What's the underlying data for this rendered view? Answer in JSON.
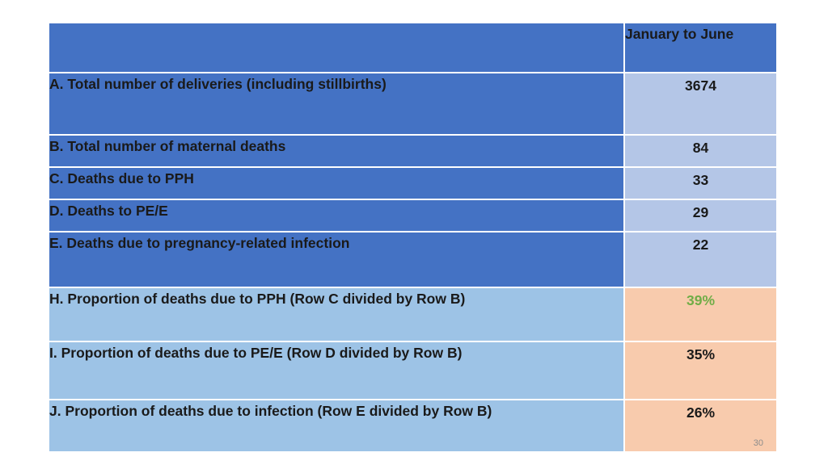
{
  "table": {
    "header": {
      "label": "",
      "value": "January to June"
    },
    "rows": [
      {
        "label": "A. Total number of deliveries (including stillbirths)",
        "value": "3674"
      },
      {
        "label": "B. Total number of maternal deaths",
        "value": "84"
      },
      {
        "label": "C. Deaths due to PPH",
        "value": "33"
      },
      {
        "label": "D. Deaths to PE/E",
        "value": "29"
      },
      {
        "label": "E. Deaths due to pregnancy-related infection",
        "value": "22"
      },
      {
        "label": "H. Proportion of deaths due to PPH (Row C divided by Row B)",
        "value": "39%"
      },
      {
        "label": "I. Proportion of deaths due to PE/E (Row D divided by Row B)",
        "value": "35%"
      },
      {
        "label": "J. Proportion of deaths due to infection (Row E divided by Row B)",
        "value": "26%"
      }
    ]
  },
  "colors": {
    "header_blue": "#4472c4",
    "light_blue_value": "#b4c6e7",
    "light_blue_label": "#9dc3e6",
    "peach_value": "#f8cbad",
    "highlight_green": "#70ad47"
  },
  "page_number": "30"
}
